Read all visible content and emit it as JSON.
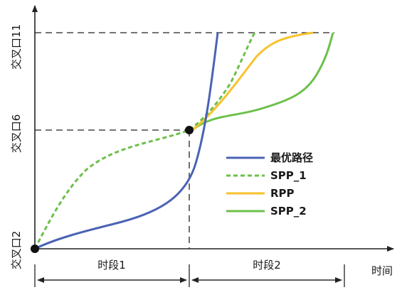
{
  "y_labels": {
    "bottom": "交叉口2",
    "middle": "交叉口6",
    "top": "交叉口11"
  },
  "x_axis_label": "时间",
  "segments": [
    {
      "label": "时段1"
    },
    {
      "label": "时段2"
    }
  ],
  "legend": [
    {
      "label": "最优路径",
      "color": "#4a63b5",
      "style": "solid"
    },
    {
      "label": "SPP_1",
      "color": "#6cc04a",
      "style": "dashed"
    },
    {
      "label": "RPP",
      "color": "#f8c22c",
      "style": "solid"
    },
    {
      "label": "SPP_2",
      "color": "#6cc04a",
      "style": "solid"
    }
  ]
}
